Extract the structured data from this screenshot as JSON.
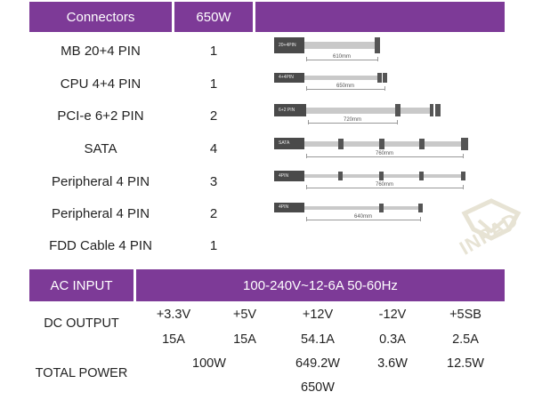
{
  "header": {
    "connectors_label": "Connectors",
    "wattage_label": "650W"
  },
  "connectors": [
    {
      "name": "MB 20+4 PIN",
      "count": "1",
      "plug_label": "20+4PIN",
      "length": "610mm"
    },
    {
      "name": "CPU 4+4 PIN",
      "count": "1",
      "plug_label": "4+4PIN",
      "length": "650mm"
    },
    {
      "name": "PCI-e 6+2 PIN",
      "count": "2",
      "plug_label": "6+2 PIN",
      "length": "720mm"
    },
    {
      "name": "SATA",
      "count": "4",
      "plug_label": "SATA",
      "length": "760mm"
    },
    {
      "name": "Peripheral 4 PIN",
      "count": "3",
      "plug_label": "4PIN",
      "length": "760mm"
    },
    {
      "name": "Peripheral 4 PIN",
      "count": "2",
      "plug_label": "4PIN",
      "length": "640mm"
    },
    {
      "name": "FDD Cable 4 PIN",
      "count": "1"
    }
  ],
  "ac_input": {
    "label": "AC INPUT",
    "value": "100-240V~12-6A 50-60Hz"
  },
  "dc_output": {
    "label": "DC OUTPUT",
    "rails": [
      "+3.3V",
      "+5V",
      "+12V",
      "-12V",
      "+5SB"
    ],
    "currents": [
      "15A",
      "15A",
      "54.1A",
      "0.3A",
      "2.5A"
    ]
  },
  "total_power": {
    "label": "TOTAL POWER",
    "combined_33_5": "100W",
    "p12": "649.2W",
    "n12": "3.6W",
    "sb": "12.5W",
    "total": "650W"
  },
  "watermark": {
    "text": "INPAD",
    "color": "#e7e3d4"
  },
  "colors": {
    "band": "#7d3a97"
  }
}
